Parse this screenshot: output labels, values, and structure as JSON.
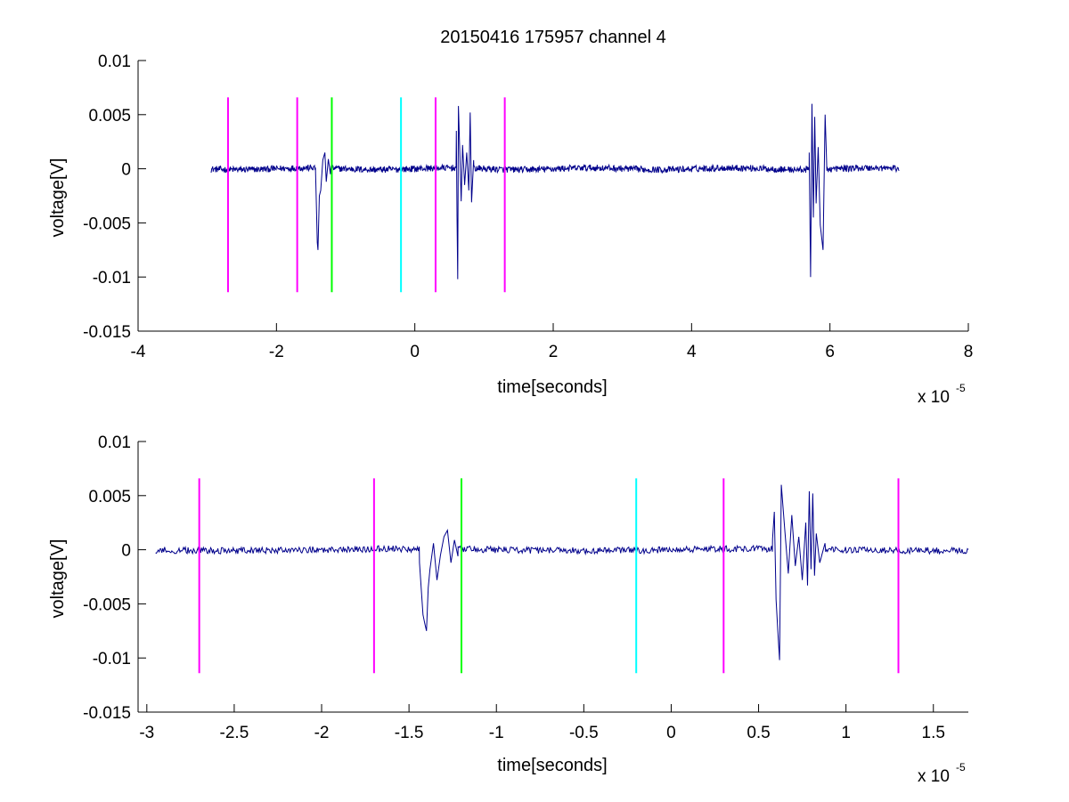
{
  "chart_data": [
    {
      "type": "line",
      "title": "20150416 175957 channel 4",
      "xlabel": "time[seconds]",
      "ylabel": "voltage[V]",
      "x_exponent_label": "x 10",
      "x_exponent_power": "-5",
      "x_scale": 1e-05,
      "xlim": [
        -4,
        8
      ],
      "ylim": [
        -0.015,
        0.01
      ],
      "xticks": [
        -4,
        -2,
        0,
        2,
        4,
        6,
        8
      ],
      "xtick_labels": [
        "-4",
        "-2",
        "0",
        "2",
        "4",
        "6",
        "8"
      ],
      "yticks": [
        -0.015,
        -0.01,
        -0.005,
        0,
        0.005,
        0.01
      ],
      "ytick_labels": [
        "-0.015",
        "-0.01",
        "-0.005",
        "0",
        "0.005",
        "0.01"
      ],
      "box": "bottom-left",
      "signal": {
        "color": "#00008b",
        "x_range": [
          -2.95,
          7.0
        ],
        "baseline_noise_amplitude": 0.0003,
        "bursts": [
          {
            "t": -1.4,
            "x": [
              -1.43,
              -1.41,
              -1.4,
              -1.38,
              -1.36,
              -1.33,
              -1.3,
              -1.28,
              -1.25,
              -1.22
            ],
            "y": [
              -0.0015,
              -0.0068,
              -0.0075,
              -0.0025,
              -0.002,
              0.0008,
              0.0015,
              -0.0012,
              0.0009,
              -0.0005
            ]
          },
          {
            "t": 0.65,
            "x": [
              0.6,
              0.61,
              0.62,
              0.63,
              0.65,
              0.67,
              0.69,
              0.72,
              0.75,
              0.78,
              0.8,
              0.82,
              0.85
            ],
            "y": [
              0.0035,
              -0.0045,
              -0.0102,
              0.0058,
              0.0015,
              -0.003,
              0.0022,
              -0.0015,
              0.0015,
              -0.002,
              0.0052,
              -0.0031,
              0.0008
            ]
          },
          {
            "t": 5.8,
            "x": [
              5.7,
              5.72,
              5.74,
              5.76,
              5.78,
              5.8,
              5.83,
              5.86,
              5.9,
              5.93,
              5.95
            ],
            "y": [
              0.0015,
              -0.01,
              0.006,
              -0.0045,
              0.0048,
              -0.0032,
              0.002,
              -0.0052,
              -0.0075,
              0.005,
              0.001
            ]
          }
        ]
      },
      "markers": [
        {
          "x": -2.7,
          "color": "#ff00ff"
        },
        {
          "x": -1.7,
          "color": "#ff00ff"
        },
        {
          "x": -1.2,
          "color": "#00ff00"
        },
        {
          "x": -0.2,
          "color": "#00ffff"
        },
        {
          "x": 0.3,
          "color": "#ff00ff"
        },
        {
          "x": 1.3,
          "color": "#ff00ff"
        }
      ],
      "marker_y_range": [
        -0.0114,
        0.0066
      ]
    },
    {
      "type": "line",
      "title": "",
      "xlabel": "time[seconds]",
      "ylabel": "voltage[V]",
      "x_exponent_label": "x 10",
      "x_exponent_power": "-5",
      "x_scale": 1e-05,
      "xlim": [
        -3.05,
        1.7
      ],
      "ylim": [
        -0.015,
        0.01
      ],
      "xticks": [
        -3,
        -2.5,
        -2,
        -1.5,
        -1,
        -0.5,
        0,
        0.5,
        1,
        1.5
      ],
      "xtick_labels": [
        "-3",
        "-2.5",
        "-2",
        "-1.5",
        "-1",
        "-0.5",
        "0",
        "0.5",
        "1",
        "1.5"
      ],
      "yticks": [
        -0.015,
        -0.01,
        -0.005,
        0,
        0.005,
        0.01
      ],
      "ytick_labels": [
        "-0.015",
        "-0.01",
        "-0.005",
        "0",
        "0.005",
        "0.01"
      ],
      "box": "bottom-left",
      "signal": {
        "color": "#00008b",
        "x_range": [
          -2.95,
          1.7
        ],
        "baseline_noise_amplitude": 0.0003,
        "bursts": [
          {
            "t": -1.4,
            "x": [
              -1.44,
              -1.42,
              -1.41,
              -1.4,
              -1.39,
              -1.38,
              -1.36,
              -1.34,
              -1.32,
              -1.3,
              -1.28,
              -1.26,
              -1.24,
              -1.22
            ],
            "y": [
              -0.0012,
              -0.006,
              -0.0068,
              -0.0075,
              -0.0035,
              -0.0018,
              0.0006,
              -0.0028,
              -0.0005,
              0.0012,
              0.0018,
              -0.0012,
              0.0009,
              -0.0006
            ]
          },
          {
            "t": 0.65,
            "x": [
              0.58,
              0.59,
              0.6,
              0.61,
              0.62,
              0.63,
              0.65,
              0.67,
              0.69,
              0.71,
              0.73,
              0.75,
              0.77,
              0.78,
              0.79,
              0.8,
              0.81,
              0.82,
              0.83,
              0.85,
              0.88
            ],
            "y": [
              0.001,
              0.0035,
              -0.0046,
              -0.0075,
              -0.0102,
              0.006,
              0.0018,
              -0.0022,
              0.0032,
              -0.0015,
              0.0012,
              -0.0028,
              0.0025,
              -0.0033,
              0.0054,
              -0.0018,
              0.0052,
              -0.0024,
              0.0015,
              -0.0012,
              0.0006
            ]
          }
        ]
      },
      "markers": [
        {
          "x": -2.7,
          "color": "#ff00ff"
        },
        {
          "x": -1.7,
          "color": "#ff00ff"
        },
        {
          "x": -1.2,
          "color": "#00ff00"
        },
        {
          "x": -0.2,
          "color": "#00ffff"
        },
        {
          "x": 0.3,
          "color": "#ff00ff"
        },
        {
          "x": 1.3,
          "color": "#ff00ff"
        }
      ],
      "marker_y_range": [
        -0.0114,
        0.0066
      ]
    }
  ]
}
